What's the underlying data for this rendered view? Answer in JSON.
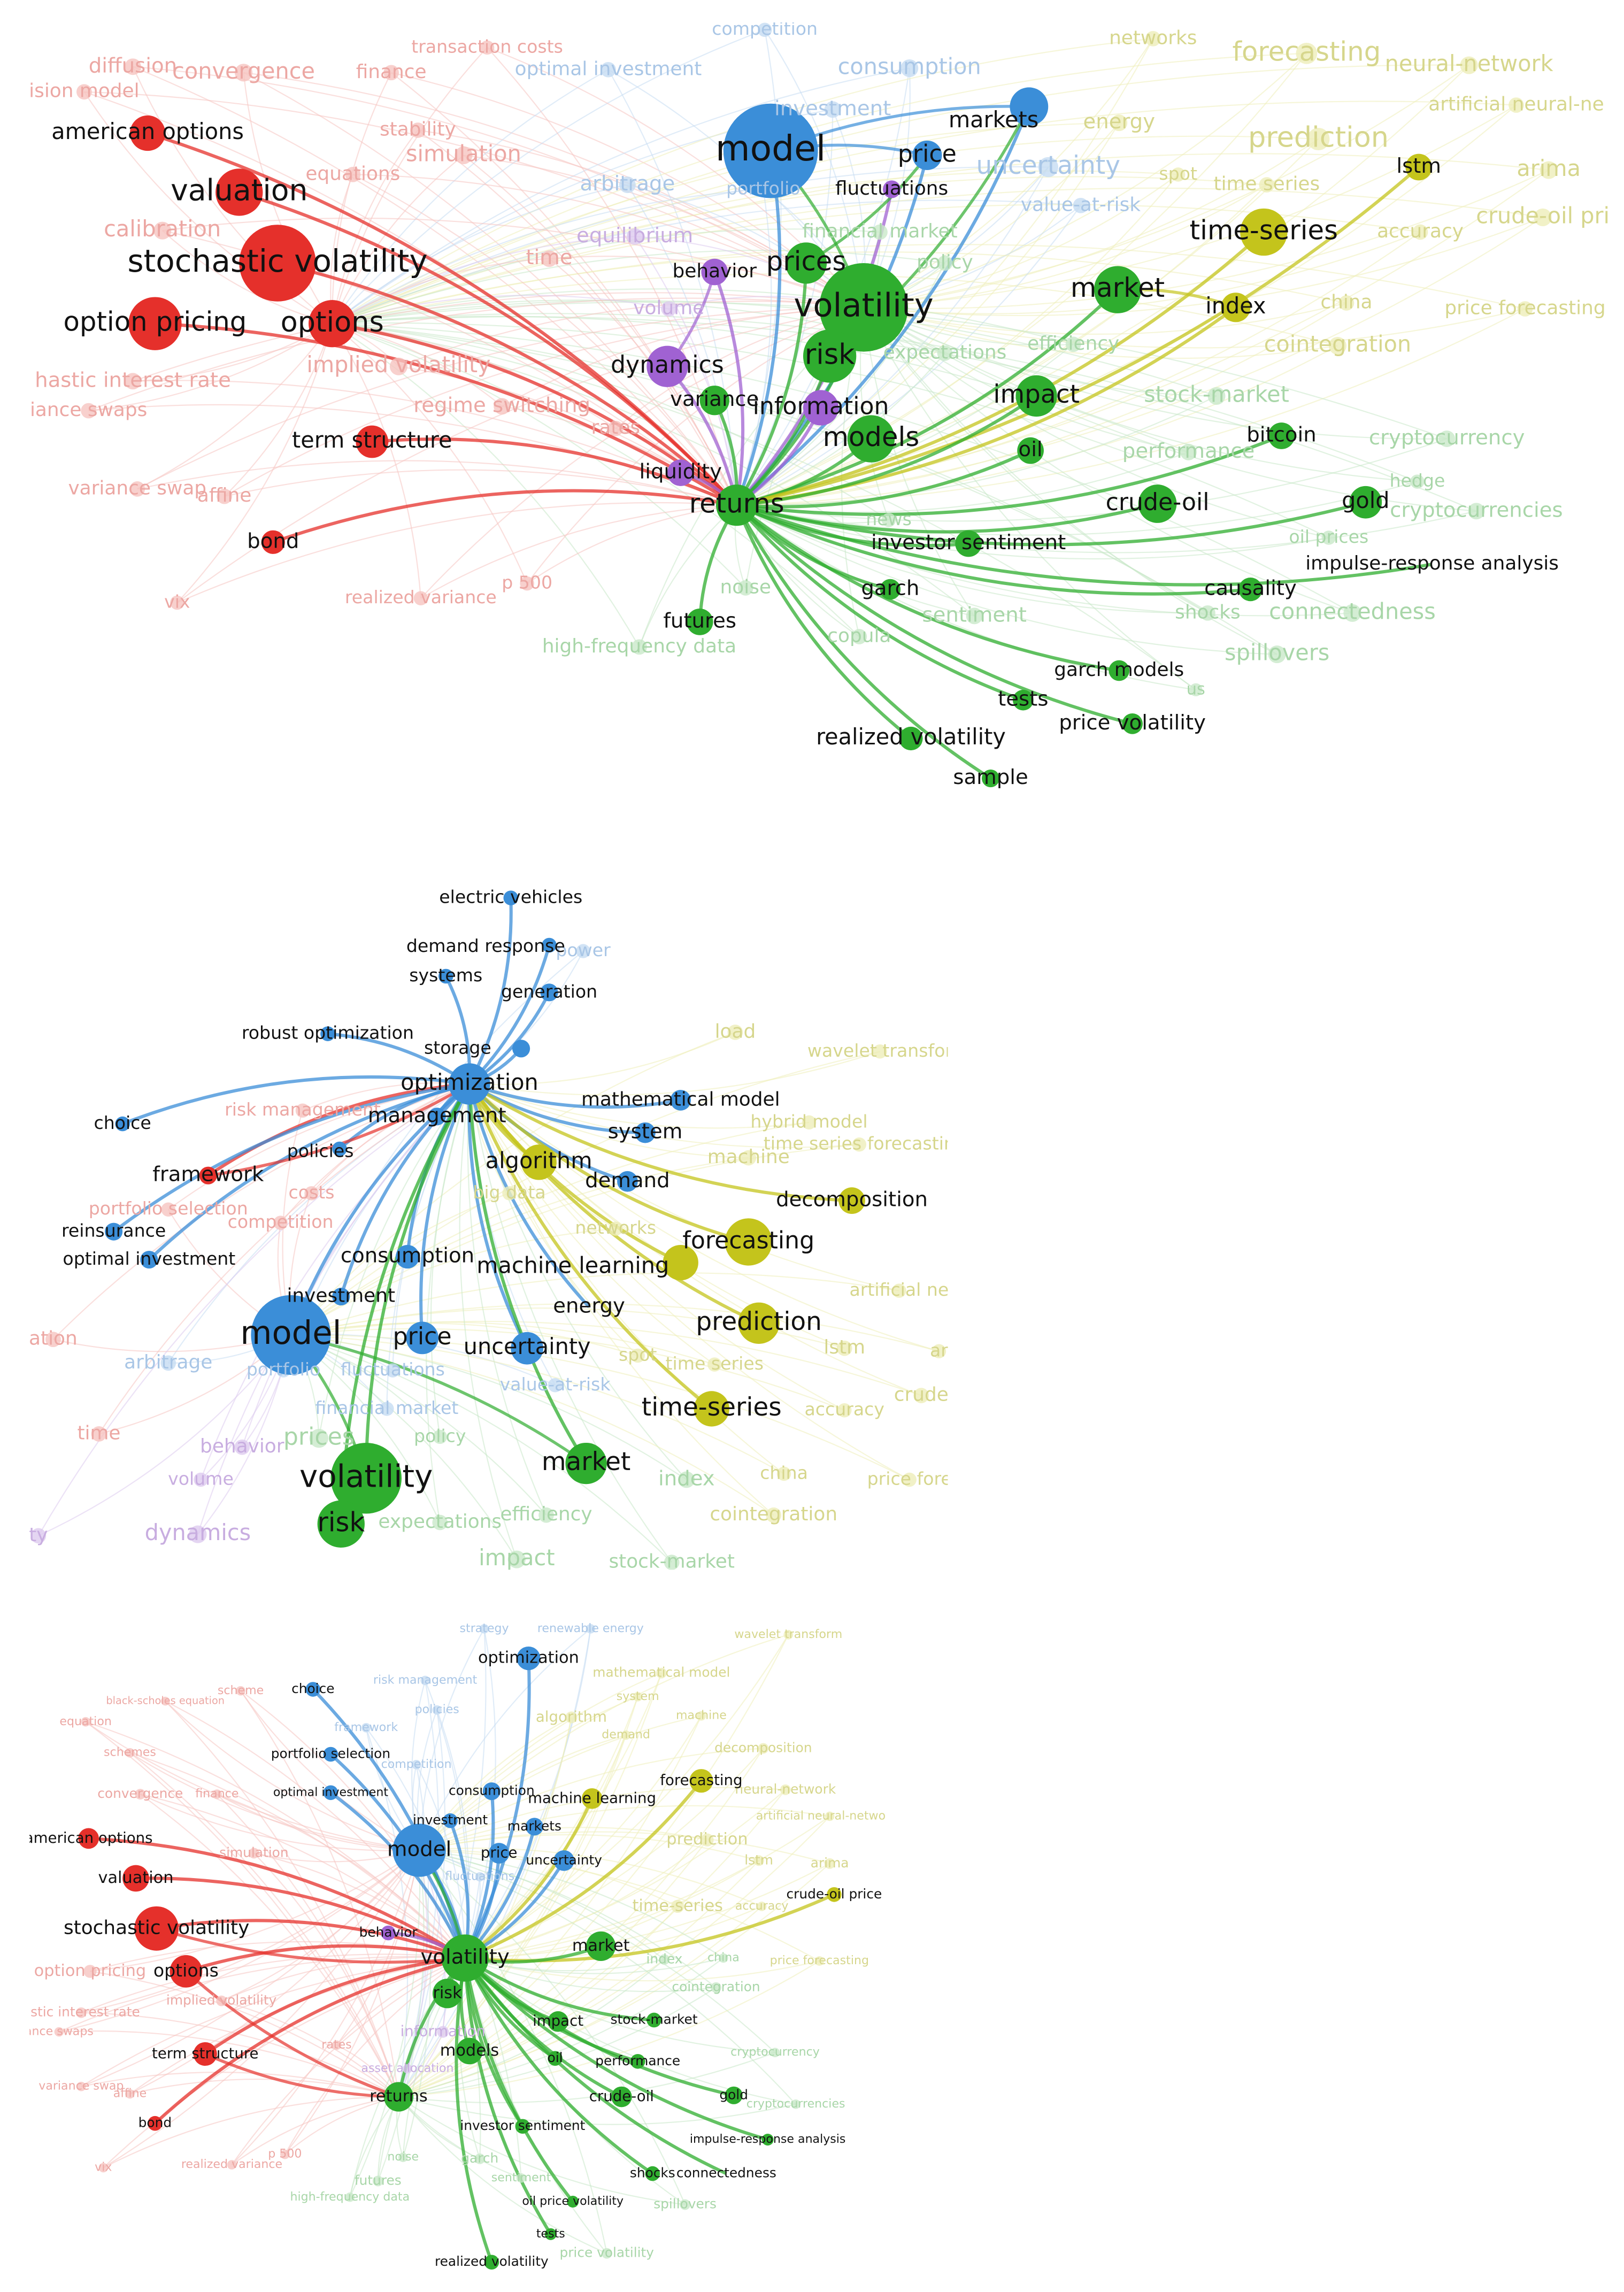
{
  "panels": [
    {
      "nodes": [
        "model",
        "markets",
        "price",
        "fluctuations",
        "american options",
        "valuation",
        "stochastic volatility",
        "option pricing",
        "options",
        "term structure",
        "bond",
        "behavior",
        "prices",
        "volatility",
        "risk",
        "dynamics",
        "variance",
        "information",
        "models",
        "liquidity",
        "returns",
        "market",
        "index",
        "time-series",
        "lstm",
        "impact",
        "oil",
        "bitcoin",
        "gold",
        "crude-oil",
        "investor sentiment",
        "causality",
        "impulse-response analysis",
        "garch",
        "futures",
        "garch models",
        "tests",
        "price volatility",
        "realized volatility",
        "sample",
        "diffusion",
        "convergence",
        "finance",
        "ision model",
        "optimal investment",
        "consumption",
        "investment",
        "competition",
        "networks",
        "forecasting",
        "neural-network",
        "artificial neural-ne",
        "energy",
        "uncertainty",
        "prediction",
        "spot",
        "time series",
        "arima",
        "value-at-risk",
        "accuracy",
        "crude-oil pri",
        "financial market",
        "policy",
        "expectations",
        "efficiency",
        "china",
        "cointegration",
        "price forecasting",
        "stock-market",
        "cryptocurrency",
        "cryptocurrencies",
        "performance",
        "hedge",
        "oil prices",
        "connectedness",
        "spillovers",
        "shocks",
        "copula",
        "sentiment",
        "noise",
        "high-frequency data",
        "news",
        "realized variance",
        "p 500",
        "vix",
        "affine",
        "variance swap",
        "hastic interest rate",
        "iance swaps",
        "implied volatility",
        "regime switching",
        "rates",
        "equations",
        "simulation",
        "stability",
        "arbitrage",
        "portfolio",
        "calibration",
        "time",
        "equilibrium",
        "volume",
        "us",
        "transaction costs"
      ]
    },
    {
      "nodes": [
        "electric vehicles",
        "demand response",
        "systems",
        "generation",
        "robust optimization",
        "storage",
        "optimization",
        "management",
        "mathematical model",
        "choice",
        "policies",
        "system",
        "framework",
        "algorithm",
        "demand",
        "decomposition",
        "reinsurance",
        "forecasting",
        "optimal investment",
        "consumption",
        "machine learning",
        "energy",
        "investment",
        "prediction",
        "model",
        "price",
        "uncertainty",
        "time-series",
        "market",
        "volatility",
        "risk",
        "load",
        "power",
        "wavelet transfor",
        "hybrid model",
        "time series forecastin",
        "machine",
        "networks",
        "artificial ne",
        "lstm",
        "ar",
        "time series",
        "crude",
        "spot",
        "value-at-risk",
        "accuracy",
        "fluctuations",
        "financial market",
        "policy",
        "arbitrage",
        "portfolio",
        "ation",
        "time",
        "behavior",
        "prices",
        "volume",
        "expectations",
        "efficiency",
        "index",
        "china",
        "price fore",
        "cointegration",
        "dynamics",
        "impact",
        "stock-market",
        "risk management",
        "costs",
        "portfolio selection",
        "competition",
        "big data",
        "ty"
      ]
    },
    {
      "nodes": [
        "optimization",
        "choice",
        "portfolio selection",
        "optimal investment",
        "consumption",
        "machine learning",
        "forecasting",
        "investment",
        "model",
        "markets",
        "price",
        "uncertainty",
        "american options",
        "valuation",
        "stochastic volatility",
        "options",
        "crude-oil price",
        "behavior",
        "volatility",
        "market",
        "risk",
        "term structure",
        "impact",
        "stock-market",
        "models",
        "oil",
        "performance",
        "returns",
        "crude-oil",
        "gold",
        "bond",
        "investor sentiment",
        "impulse-response analysis",
        "shocks",
        "connectedness",
        "oil price volatility",
        "tests",
        "realized volatility",
        "strategy",
        "renewable energy",
        "wavelet transform",
        "risk management",
        "mathematical model",
        "system",
        "algorithm",
        "machine",
        "demand",
        "framework",
        "policies",
        "scheme",
        "black-scholes equation",
        "equation",
        "schemes",
        "convergence",
        "finance",
        "decomposition",
        "neural-network",
        "artificial neural-networks",
        "prediction",
        "lstm",
        "arima",
        "time-series",
        "accuracy",
        "simulation",
        "option pricing",
        "implied volatility",
        "astic interest rate",
        "ance swaps",
        "rates",
        "affine",
        "variance swap",
        "vix",
        "realized variance",
        "p 500",
        "noise",
        "futures",
        "high-frequency data",
        "garch",
        "sentiment",
        "spillovers",
        "price volatility",
        "cointegration",
        "cryptocurrency",
        "cryptocurrencies",
        "price forecasting",
        "china",
        "index",
        "information",
        "asset allocation",
        "competition",
        "fluctuations"
      ]
    }
  ]
}
